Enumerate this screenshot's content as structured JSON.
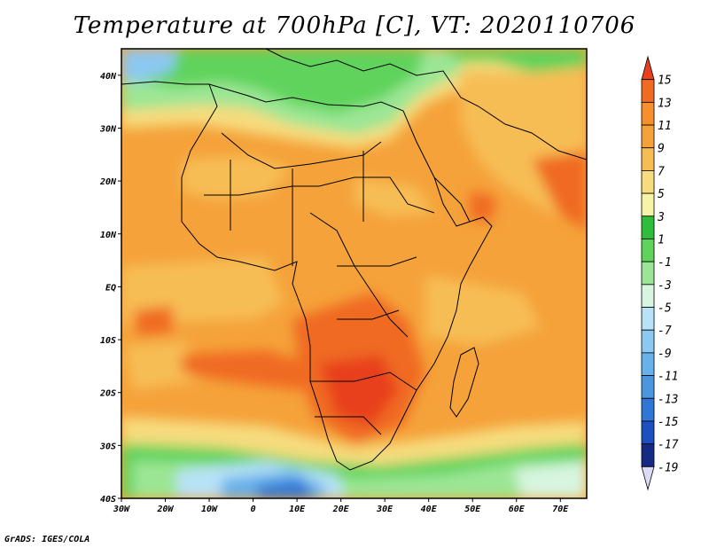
{
  "title": "Temperature at 700hPa [C], VT: 2020110706",
  "credit": "GrADS: IGES/COLA",
  "map": {
    "lon_range": [
      -30,
      76
    ],
    "lat_range": [
      -40,
      45
    ],
    "x_ticks": [
      {
        "lon": -30,
        "label": "30W"
      },
      {
        "lon": -20,
        "label": "20W"
      },
      {
        "lon": -10,
        "label": "10W"
      },
      {
        "lon": 0,
        "label": "0"
      },
      {
        "lon": 10,
        "label": "10E"
      },
      {
        "lon": 20,
        "label": "20E"
      },
      {
        "lon": 30,
        "label": "30E"
      },
      {
        "lon": 40,
        "label": "40E"
      },
      {
        "lon": 50,
        "label": "50E"
      },
      {
        "lon": 60,
        "label": "60E"
      },
      {
        "lon": 70,
        "label": "70E"
      }
    ],
    "y_ticks": [
      {
        "lat": 40,
        "label": "40N"
      },
      {
        "lat": 30,
        "label": "30N"
      },
      {
        "lat": 20,
        "label": "20N"
      },
      {
        "lat": 10,
        "label": "10N"
      },
      {
        "lat": 0,
        "label": "EQ"
      },
      {
        "lat": -10,
        "label": "10S"
      },
      {
        "lat": -20,
        "label": "20S"
      },
      {
        "lat": -30,
        "label": "30S"
      },
      {
        "lat": -40,
        "label": "40S"
      }
    ],
    "background_color": "#f5a23a"
  },
  "colorbar": {
    "levels": [
      "15",
      "13",
      "11",
      "9",
      "7",
      "5",
      "3",
      "1",
      "-1",
      "-3",
      "-5",
      "-7",
      "-9",
      "-11",
      "-13",
      "-15",
      "-17",
      "-19"
    ],
    "colors": [
      "#e8401c",
      "#f06a22",
      "#f5902c",
      "#f5a23a",
      "#f7bd55",
      "#f6dc7e",
      "#f7f3a8",
      "#2ebf3a",
      "#5fd35c",
      "#9be694",
      "#d7f5e0",
      "#b8e2f7",
      "#8cc8f2",
      "#68b1ea",
      "#4c96e0",
      "#2f77d6",
      "#1c4fc0",
      "#142a84",
      "#dcdcf7"
    ]
  }
}
